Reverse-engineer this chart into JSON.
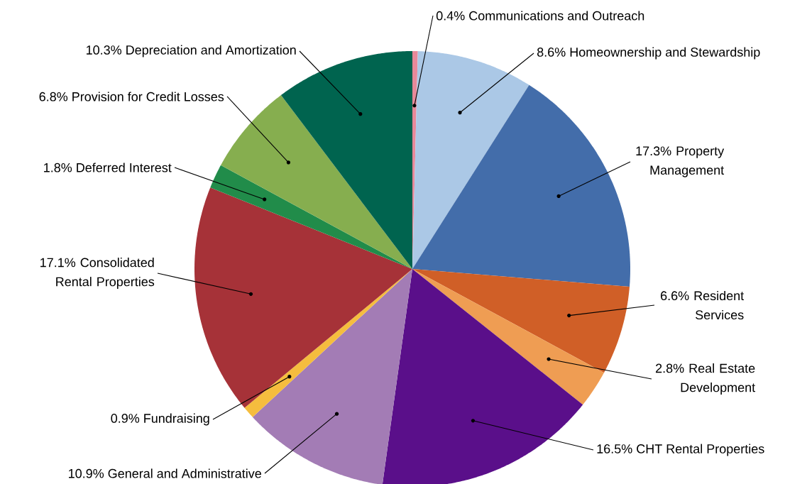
{
  "chart_data": {
    "type": "pie",
    "categories": [
      "Communications and Outreach",
      "Homeownership and Stewardship",
      "Property Management",
      "Resident Services",
      "Real Estate Development",
      "CHT Rental Properties",
      "General and Administrative",
      "Fundraising",
      "Consolidated Rental Properties",
      "Deferred Interest",
      "Provision for Credit Losses",
      "Depreciation and Amortization"
    ],
    "values": [
      0.4,
      8.6,
      17.3,
      6.6,
      2.8,
      16.5,
      10.9,
      0.9,
      17.1,
      1.8,
      6.8,
      10.3
    ],
    "value_labels": [
      "0.4%",
      "8.6%",
      "17.3%",
      "6.6%",
      "2.8%",
      "16.5%",
      "10.9%",
      "0.9%",
      "17.1%",
      "1.8%",
      "6.8%",
      "10.3%"
    ],
    "colors": [
      "#e8899a",
      "#abc8e6",
      "#436daa",
      "#d05f27",
      "#ef9d53",
      "#5a0f8a",
      "#a37cb5",
      "#f5bd3e",
      "#a63238",
      "#218c4a",
      "#86ae4f",
      "#00644f"
    ]
  }
}
